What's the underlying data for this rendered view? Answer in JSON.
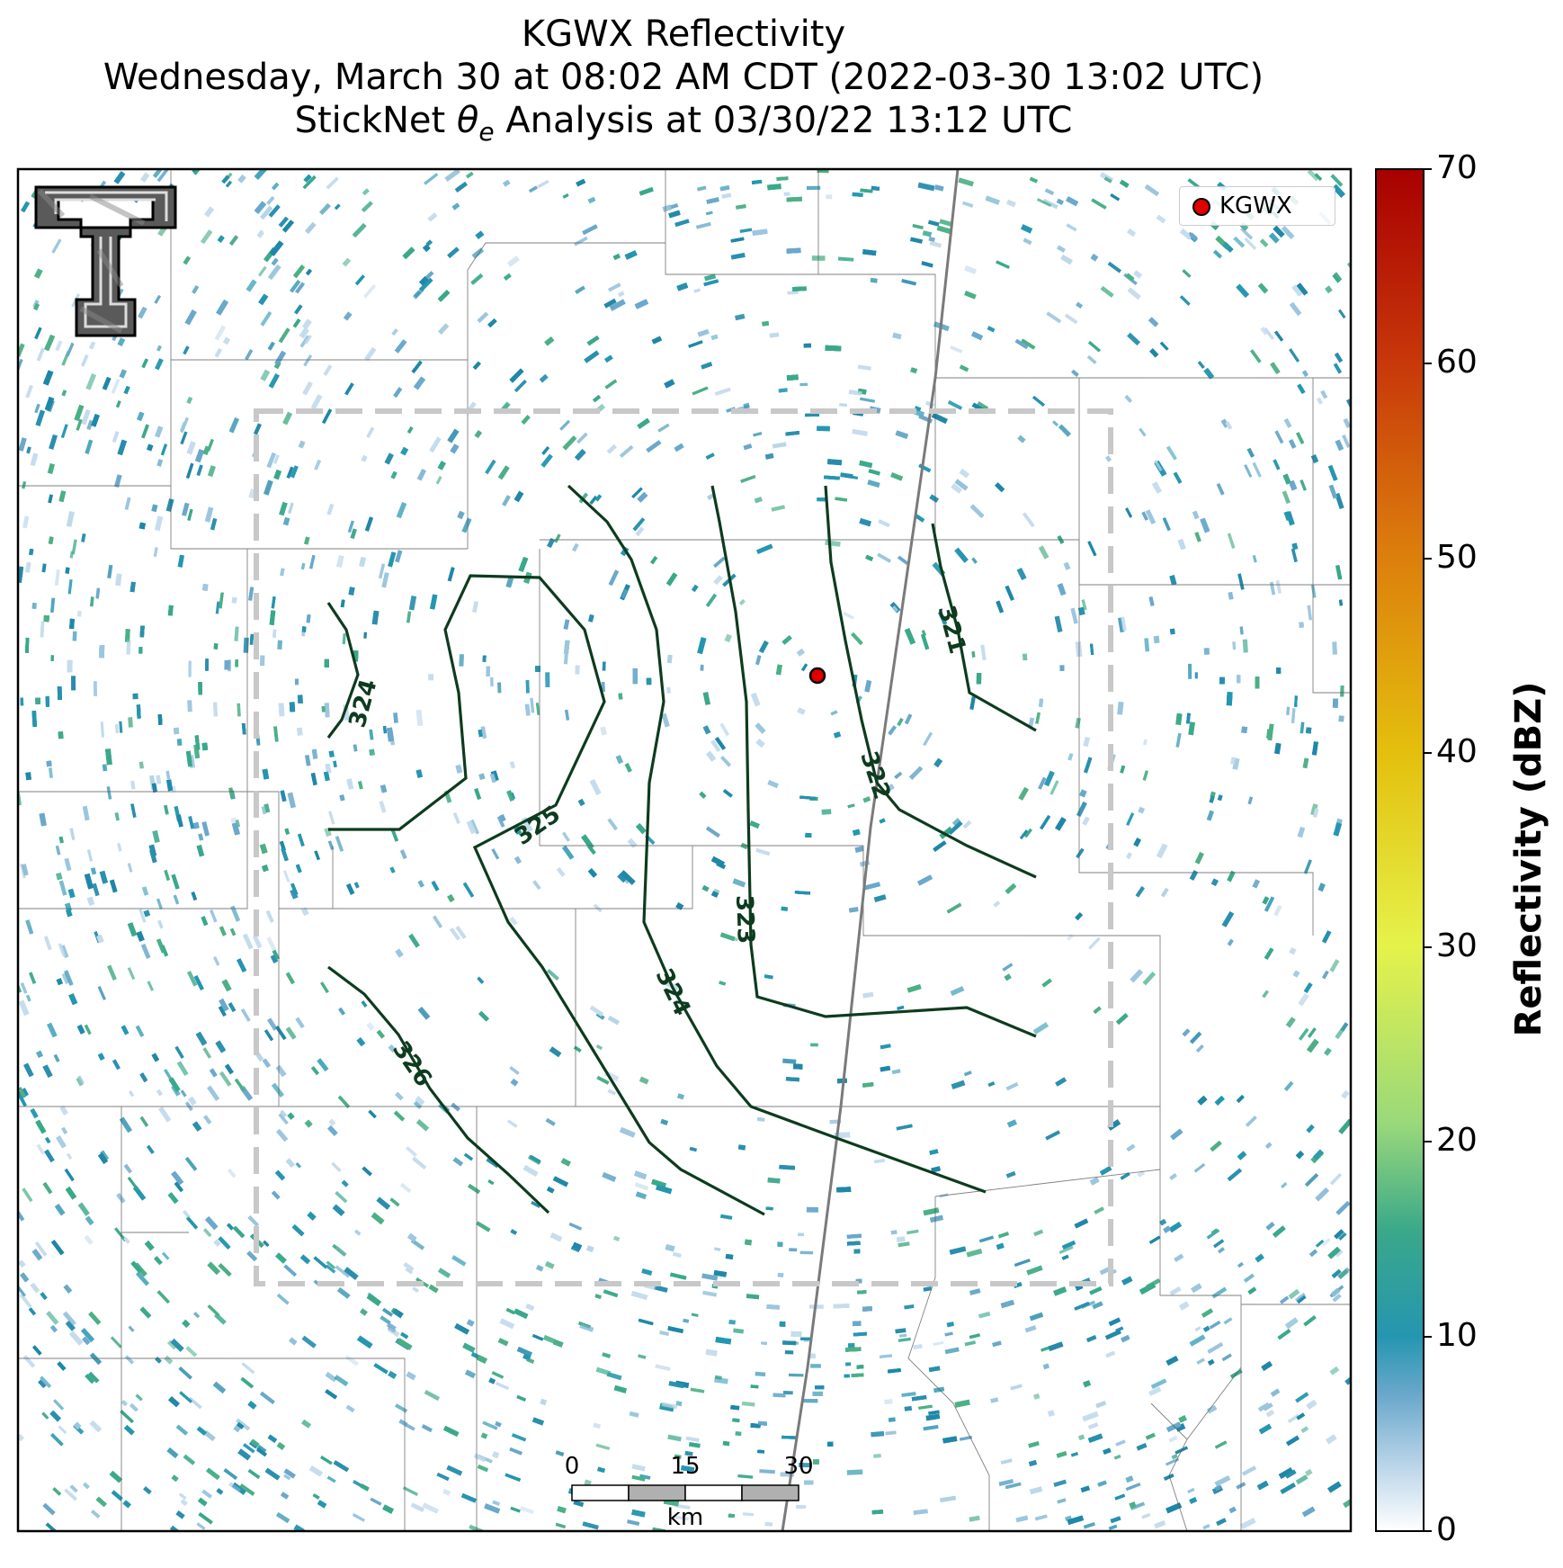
{
  "titles": [
    "KGWX Reflectivity",
    "Wednesday, March 30 at 08:02 AM CDT (2022-03-30 13:02 UTC)",
    "StickNet θe Analysis at 03/30/22 13:12 UTC"
  ],
  "legend": {
    "label": "KGWX"
  },
  "colorbar": {
    "label": "Reflectivity (dBZ)",
    "ticks": [
      "0",
      "10",
      "20",
      "30",
      "40",
      "50",
      "60",
      "70"
    ]
  },
  "scalebar": {
    "ticks": [
      "0",
      "15",
      "30"
    ],
    "unit": "km"
  },
  "contours": {
    "labels": [
      "321",
      "322",
      "323",
      "324",
      "325",
      "324",
      "326"
    ]
  },
  "colors": {
    "contour": "#0d3b1e",
    "radar_site": "#e00000",
    "domain_box": "#c8c8c8"
  },
  "logo": {
    "description": "Texas Tech double-T logo"
  }
}
